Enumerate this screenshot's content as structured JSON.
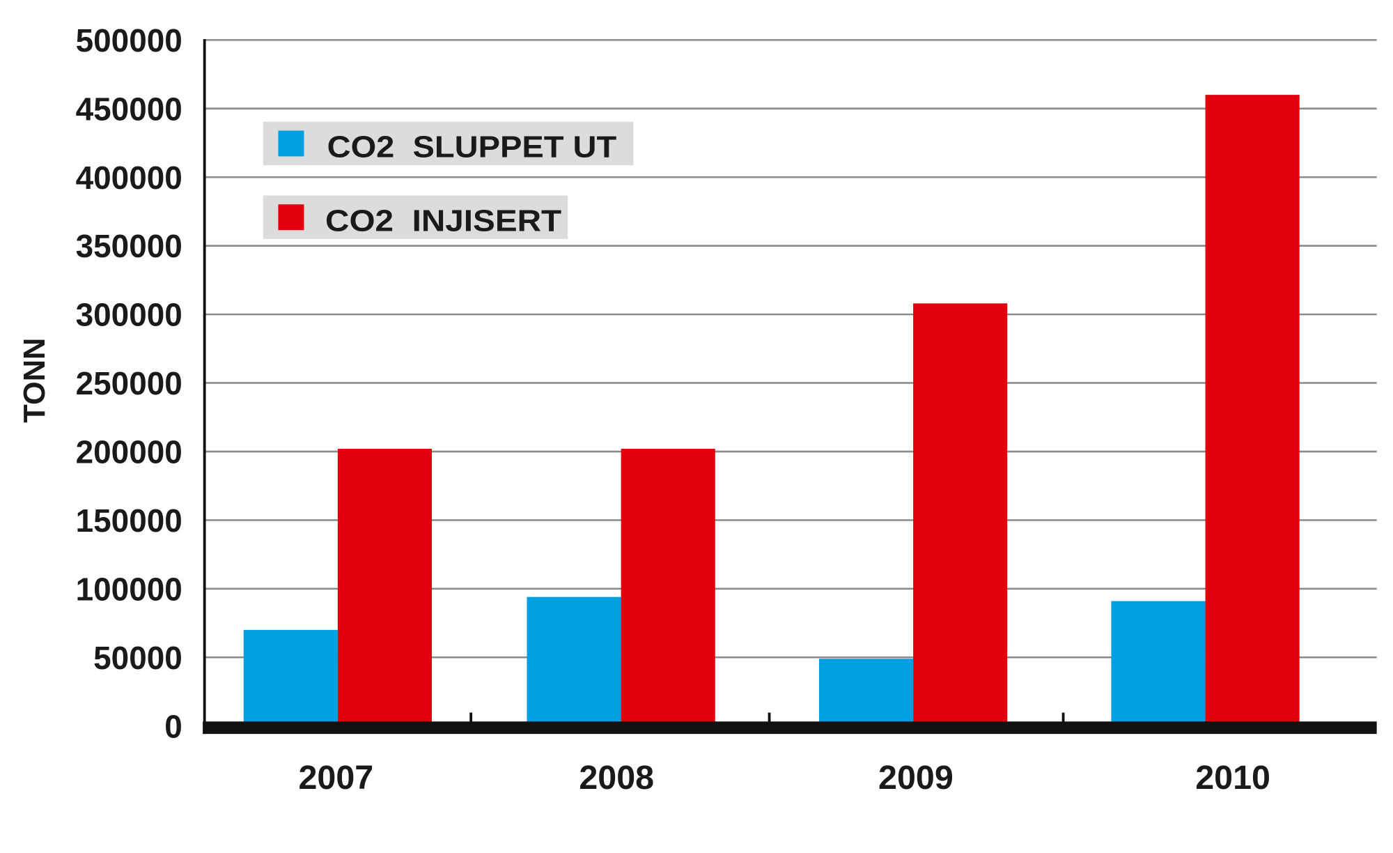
{
  "chart_data": {
    "type": "bar",
    "title": "",
    "xlabel": "",
    "ylabel": "TONN",
    "ylim": [
      0,
      500000
    ],
    "yticks": [
      0,
      50000,
      100000,
      150000,
      200000,
      250000,
      300000,
      350000,
      400000,
      450000,
      500000
    ],
    "grid": true,
    "legend_placement": "top-left",
    "categories": [
      "2007",
      "2008",
      "2009",
      "2010"
    ],
    "series": [
      {
        "name": "CO2  SLUPPET UT",
        "color": "#009fe0",
        "values": [
          70000,
          94000,
          49000,
          91000
        ]
      },
      {
        "name": "CO2  INJISERT",
        "color": "#e2000f",
        "values": [
          202000,
          202000,
          308000,
          460000
        ]
      }
    ]
  }
}
